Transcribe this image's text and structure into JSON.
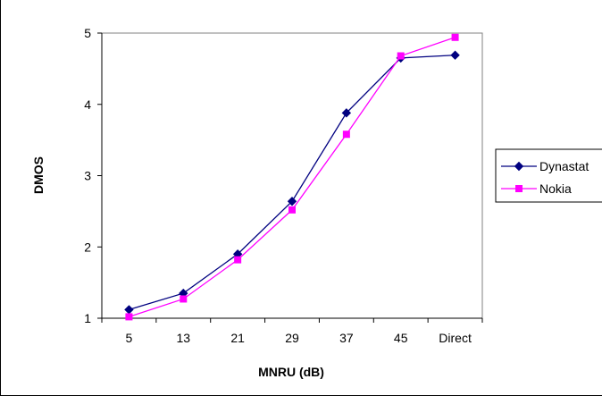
{
  "chart_data": {
    "type": "line",
    "title": "",
    "xlabel": "MNRU (dB)",
    "ylabel": "DMOS",
    "categories": [
      "5",
      "13",
      "21",
      "29",
      "37",
      "45",
      "Direct"
    ],
    "ylim": [
      1,
      5
    ],
    "yticks": [
      "1",
      "2",
      "3",
      "4",
      "5"
    ],
    "grid": false,
    "legend_position": "right",
    "series": [
      {
        "name": "Dynastat",
        "color": "#000080",
        "marker": "diamond",
        "values": [
          1.12,
          1.35,
          1.9,
          2.64,
          3.88,
          4.65,
          4.69
        ]
      },
      {
        "name": "Nokia",
        "color": "#FF00FF",
        "marker": "square",
        "values": [
          1.02,
          1.27,
          1.82,
          2.52,
          3.58,
          4.68,
          4.94
        ]
      }
    ]
  }
}
